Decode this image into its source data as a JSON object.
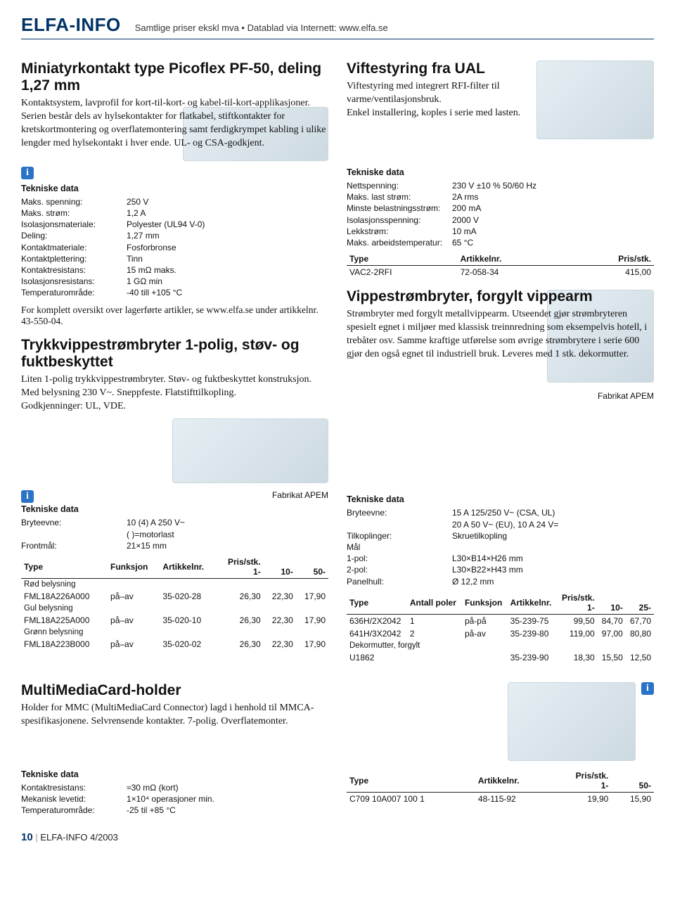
{
  "header": {
    "logo": "ELFA-INFO",
    "sub": "Samtlige priser ekskl mva • Datablad via Internett: www.elfa.se"
  },
  "s1": {
    "title": "Miniatyrkontakt type Picoflex PF-50, deling 1,27 mm",
    "body": "Kontaktsystem, lavprofil for kort-til-kort- og kabel-til-kort-applikasjoner. Serien består dels av hylsekontakter for flatkabel, stiftkontakter for kretskortmontering og overflatemontering samt ferdigkrympet kabling i ulike lengder med hylsekontakt i hver ende. UL- og CSA-godkjent.",
    "spec_title": "Tekniske data",
    "specs": [
      {
        "k": "Maks. spenning:",
        "v": "250 V"
      },
      {
        "k": "Maks. strøm:",
        "v": "1,2 A"
      },
      {
        "k": "Isolasjonsmateriale:",
        "v": "Polyester (UL94 V-0)"
      },
      {
        "k": "Deling:",
        "v": "1,27 mm"
      },
      {
        "k": "Kontaktmateriale:",
        "v": "Fosforbronse"
      },
      {
        "k": "Kontaktplettering:",
        "v": "Tinn"
      },
      {
        "k": "Kontaktresistans:",
        "v": "15 mΩ maks."
      },
      {
        "k": "Isolasjonsresistans:",
        "v": "1 GΩ min"
      },
      {
        "k": "Temperaturområde:",
        "v": "-40 till +105 °C"
      }
    ],
    "note": "For komplett oversikt over lagerførte artikler, se www.elfa.se under artikkelnr. 43-550-04."
  },
  "s2": {
    "title": "Trykkvippestrømbryter 1-polig, støv- og fuktbeskyttet",
    "body": "Liten 1-polig trykkvippestrømbryter. Støv- og fuktbeskyttet konstruksjon. Med belysning 230 V~. Sneppfeste. Flatstifttilkopling.\nGodkjenninger: UL, VDE.",
    "fabrikat": "Fabrikat APEM",
    "spec_title": "Tekniske data",
    "specs": [
      {
        "k": "Bryteevne:",
        "v": "10 (4) A 250 V~"
      },
      {
        "k": "",
        "v": "( )=motorlast"
      },
      {
        "k": "Frontmål:",
        "v": "21×15 mm"
      }
    ],
    "table": {
      "headers": [
        "Type",
        "Funksjon",
        "Artikkelnr.",
        "1-",
        "10-",
        "50-"
      ],
      "pris_label": "Pris/stk.",
      "rows": [
        {
          "sub": "Rød belysning"
        },
        {
          "cells": [
            "FML18A226A000",
            "på–av",
            "35-020-28",
            "26,30",
            "22,30",
            "17,90"
          ]
        },
        {
          "sub": "Gul belysning"
        },
        {
          "cells": [
            "FML18A225A000",
            "på–av",
            "35-020-10",
            "26,30",
            "22,30",
            "17,90"
          ]
        },
        {
          "sub": "Grønn belysning"
        },
        {
          "cells": [
            "FML18A223B000",
            "på–av",
            "35-020-02",
            "26,30",
            "22,30",
            "17,90"
          ]
        }
      ]
    }
  },
  "s3": {
    "title": "Viftestyring fra UAL",
    "body": "Viftestyring med integrert RFI-filter til varme/ventilasjonsbruk.\nEnkel installering, koples i serie med lasten.",
    "spec_title": "Tekniske data",
    "specs": [
      {
        "k": "Nettspenning:",
        "v": "230 V ±10 % 50/60 Hz"
      },
      {
        "k": "Maks. last strøm:",
        "v": "2A rms"
      },
      {
        "k": "Minste belastningsstrøm:",
        "v": "200 mA"
      },
      {
        "k": "Isolasjonsspenning:",
        "v": "2000 V"
      },
      {
        "k": "Lekkstrøm:",
        "v": "10 mA"
      },
      {
        "k": "Maks. arbeidstemperatur:",
        "v": "65 °C"
      }
    ],
    "table": {
      "headers": [
        "Type",
        "Artikkelnr.",
        "Pris/stk."
      ],
      "rows": [
        {
          "cells": [
            "VAC2-2RFI",
            "72-058-34",
            "415,00"
          ]
        }
      ]
    }
  },
  "s4": {
    "title": "Vippestrømbryter, forgylt vippearm",
    "body": "Strømbryter med forgylt metallvippearm. Utseendet gjør strømbryteren spesielt egnet i miljøer med klassisk treinnredning som eksempelvis hotell, i trebåter osv. Samme kraftige utførelse som øvrige strømbrytere i serie 600 gjør den også egnet til industriell bruk. Leveres med 1 stk. dekormutter.",
    "fabrikat": "Fabrikat APEM",
    "spec_title": "Tekniske data",
    "specs": [
      {
        "k": "Bryteevne:",
        "v": "15 A 125/250 V~ (CSA, UL)"
      },
      {
        "k": "",
        "v": "20 A 50 V~ (EU), 10 A 24 V="
      },
      {
        "k": "Tilkoplinger:",
        "v": "Skruetilkopling"
      },
      {
        "k": "Mål",
        "v": ""
      },
      {
        "k": "1-pol:",
        "v": "L30×B14×H26 mm"
      },
      {
        "k": "2-pol:",
        "v": "L30×B22×H43 mm"
      },
      {
        "k": "Panelhull:",
        "v": "Ø 12,2 mm"
      }
    ],
    "table": {
      "headers": [
        "Type",
        "Antall poler",
        "Funksjon",
        "Artikkelnr.",
        "1-",
        "10-",
        "25-"
      ],
      "pris_label": "Pris/stk.",
      "rows": [
        {
          "cells": [
            "636H/2X2042",
            "1",
            "på-på",
            "35-239-75",
            "99,50",
            "84,70",
            "67,70"
          ]
        },
        {
          "cells": [
            "641H/3X2042",
            "2",
            "på-av",
            "35-239-80",
            "119,00",
            "97,00",
            "80,80"
          ]
        },
        {
          "sub": "Dekormutter, forgylt"
        },
        {
          "cells": [
            "U1862",
            "",
            "",
            "35-239-90",
            "18,30",
            "15,50",
            "12,50"
          ]
        }
      ]
    }
  },
  "s5": {
    "title": "MultiMediaCard-holder",
    "body": "Holder for MMC (MultiMediaCard Connector) lagd i henhold til MMCA-spesifikasjonene. Selvrensende kontakter. 7-polig. Overflatemonter.",
    "spec_title": "Tekniske data",
    "specs": [
      {
        "k": "Kontaktresistans:",
        "v": "≈30 mΩ (kort)"
      },
      {
        "k": "Mekanisk levetid:",
        "v": "1×10⁴ operasjoner min."
      },
      {
        "k": "Temperaturområde:",
        "v": "-25 til +85 °C"
      }
    ],
    "table": {
      "headers": [
        "Type",
        "Artikkelnr.",
        "1-",
        "50-"
      ],
      "pris_label": "Pris/stk.",
      "rows": [
        {
          "cells": [
            "C709 10A007 100 1",
            "48-115-92",
            "19,90",
            "15,90"
          ]
        }
      ]
    }
  },
  "footer": {
    "page": "10",
    "label": "ELFA-INFO 4/2003"
  }
}
